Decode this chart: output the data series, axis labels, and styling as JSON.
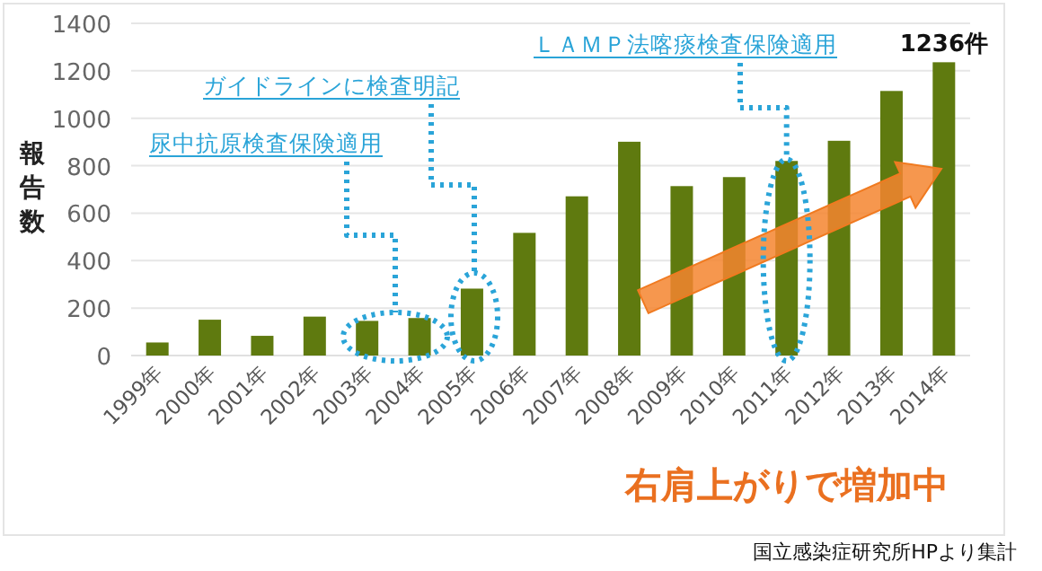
{
  "chart_data": {
    "type": "bar",
    "ylabel": "報告数",
    "categories": [
      "1999年",
      "2000年",
      "2001年",
      "2002年",
      "2003年",
      "2004年",
      "2005年",
      "2006年",
      "2007年",
      "2008年",
      "2009年",
      "2010年",
      "2011年",
      "2012年",
      "2013年",
      "2014年"
    ],
    "values": [
      55,
      151,
      83,
      164,
      146,
      158,
      282,
      517,
      671,
      901,
      714,
      752,
      820,
      905,
      1115,
      1236
    ],
    "color": "#5f7a0f",
    "ylim": [
      0,
      1400
    ],
    "yticks": [
      0,
      200,
      400,
      600,
      800,
      1000,
      1200,
      1400
    ],
    "grid": "y",
    "value_labels": [
      null,
      null,
      null,
      null,
      null,
      null,
      null,
      null,
      null,
      null,
      null,
      null,
      null,
      null,
      null,
      "1236件"
    ],
    "annotations": [
      "尿中抗原検査保険適用",
      "ガイドラインに検査明記",
      {
        "text": "ＬＡＭＰ法喀痰検査保険適用",
        "x": "2011年",
        "y": 820
      },
      "右肩上がりで増加中",
      "国立感染症研究所HPより集計"
    ]
  }
}
